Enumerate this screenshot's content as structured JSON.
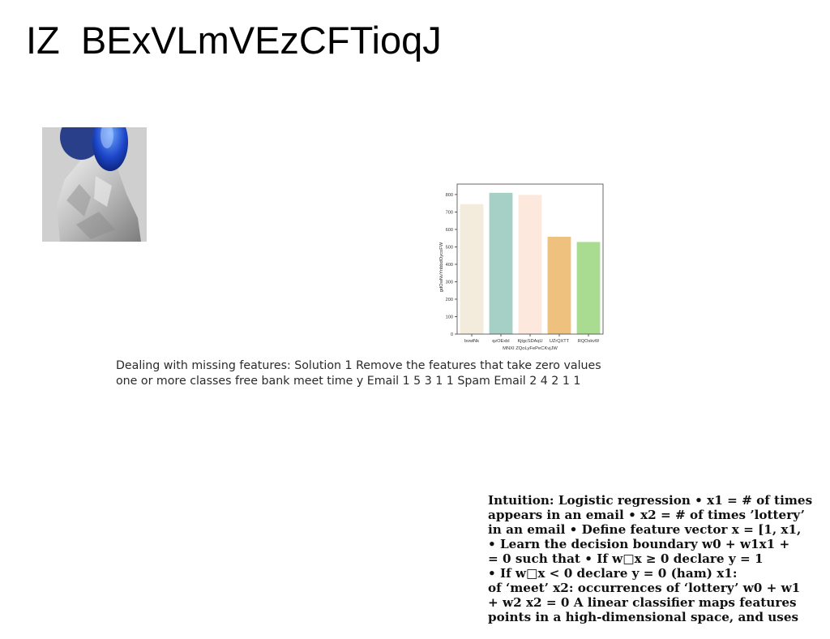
{
  "slide": {
    "title": "IZ  BExVLmVEzCFTioqJ"
  },
  "photo": {
    "icon": "blue-glass-object-on-rock-photo"
  },
  "chart_data": {
    "type": "bar",
    "categories": [
      "bvwlNk",
      "qzOExbI",
      "KjtgcSDAqU",
      "UZrQXTT",
      "RQOskvW"
    ],
    "values": [
      745,
      810,
      798,
      558,
      528
    ],
    "colors": [
      "#f3ebdc",
      "#a6cfc5",
      "#fce8dc",
      "#eec17f",
      "#a9dc91"
    ],
    "xlabel": "MNXI ZQoLyFePeCKvjJW",
    "ylabel": "gdOwNvYnbbdOycoFW",
    "ylim": [
      0,
      860
    ],
    "yticks": [
      0,
      100,
      200,
      300,
      400,
      500,
      600,
      700,
      800
    ],
    "grid": false
  },
  "caption": {
    "line1": "Dealing with missing features: Solution 1 Remove the features that take zero values",
    "line2": "one or more classes free bank meet time y Email 1 5 3 1 1 Spam Email 2 4 2 1 1"
  },
  "notes": {
    "lines": [
      "Intuition: Logistic regression • x1 = # of times",
      "appears in an email • x2 = # of times ’lottery’",
      "in an email • Define feature vector x = [1, x1,",
      "• Learn the decision boundary w0 + w1x1 +",
      "= 0 such that • If w□x ≥ 0 declare y = 1",
      "• If w□x < 0 declare y = 0 (ham) x1:",
      "of ‘meet’ x2: occurrences of ‘lottery’ w0 + w1",
      "+ w2 x2 = 0 A linear classifier maps features",
      "points in a high-dimensional space, and uses"
    ]
  }
}
